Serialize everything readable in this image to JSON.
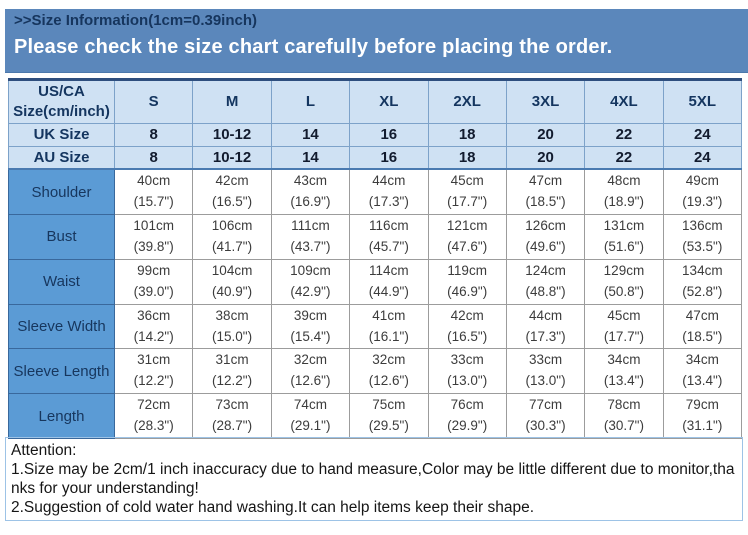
{
  "page": {
    "title_line": ">>Size Information(1cm=0.39inch)",
    "banner_line": "Please check the size chart carefully before placing the order."
  },
  "colors": {
    "banner_bg": "#5b87bb",
    "header_row_bg": "#cfe1f3",
    "label_column_bg": "#5b9bd5",
    "navy_text": "#17365d",
    "header_grid_border": "#7da2c9",
    "data_grid_border": "#9c9c9c",
    "attention_border": "#9dc3e6"
  },
  "size_table": {
    "corner": {
      "line1": "US/CA",
      "line2": "Size(cm/inch)"
    },
    "size_columns": [
      "S",
      "M",
      "L",
      "XL",
      "2XL",
      "3XL",
      "4XL",
      "5XL"
    ],
    "region_rows": [
      {
        "label": "UK Size",
        "values": [
          "8",
          "10-12",
          "14",
          "16",
          "18",
          "20",
          "22",
          "24"
        ]
      },
      {
        "label": "AU Size",
        "values": [
          "8",
          "10-12",
          "14",
          "16",
          "18",
          "20",
          "22",
          "24"
        ]
      }
    ],
    "measurement_rows": [
      {
        "label": "Shoulder",
        "cm": [
          "40cm",
          "42cm",
          "43cm",
          "44cm",
          "45cm",
          "47cm",
          "48cm",
          "49cm"
        ],
        "inch": [
          "(15.7\")",
          "(16.5\")",
          "(16.9\")",
          "(17.3\")",
          "(17.7\")",
          "(18.5\")",
          "(18.9\")",
          "(19.3\")"
        ]
      },
      {
        "label": "Bust",
        "cm": [
          "101cm",
          "106cm",
          "111cm",
          "116cm",
          "121cm",
          "126cm",
          "131cm",
          "136cm"
        ],
        "inch": [
          "(39.8\")",
          "(41.7\")",
          "(43.7\")",
          "(45.7\")",
          "(47.6\")",
          "(49.6\")",
          "(51.6\")",
          "(53.5\")"
        ]
      },
      {
        "label": "Waist",
        "cm": [
          "99cm",
          "104cm",
          "109cm",
          "114cm",
          "119cm",
          "124cm",
          "129cm",
          "134cm"
        ],
        "inch": [
          "(39.0\")",
          "(40.9\")",
          "(42.9\")",
          "(44.9\")",
          "(46.9\")",
          "(48.8\")",
          "(50.8\")",
          "(52.8\")"
        ]
      },
      {
        "label": "Sleeve Width",
        "cm": [
          "36cm",
          "38cm",
          "39cm",
          "41cm",
          "42cm",
          "44cm",
          "45cm",
          "47cm"
        ],
        "inch": [
          "(14.2\")",
          "(15.0\")",
          "(15.4\")",
          "(16.1\")",
          "(16.5\")",
          "(17.3\")",
          "(17.7\")",
          "(18.5\")"
        ]
      },
      {
        "label": "Sleeve Length",
        "cm": [
          "31cm",
          "31cm",
          "32cm",
          "32cm",
          "33cm",
          "33cm",
          "34cm",
          "34cm"
        ],
        "inch": [
          "(12.2\")",
          "(12.2\")",
          "(12.6\")",
          "(12.6\")",
          "(13.0\")",
          "(13.0\")",
          "(13.4\")",
          "(13.4\")"
        ]
      },
      {
        "label": "Length",
        "cm": [
          "72cm",
          "73cm",
          "74cm",
          "75cm",
          "76cm",
          "77cm",
          "78cm",
          "79cm"
        ],
        "inch": [
          "(28.3\")",
          "(28.7\")",
          "(29.1\")",
          "(29.5\")",
          "(29.9\")",
          "(30.3\")",
          "(30.7\")",
          "(31.1\")"
        ]
      }
    ]
  },
  "attention": {
    "heading": "Attention:",
    "note1": "1.Size may be 2cm/1 inch inaccuracy due to hand measure,Color may be little different due to monitor,thanks for your understanding!",
    "note2": "2.Suggestion of cold water hand washing.It can help items keep their shape."
  }
}
